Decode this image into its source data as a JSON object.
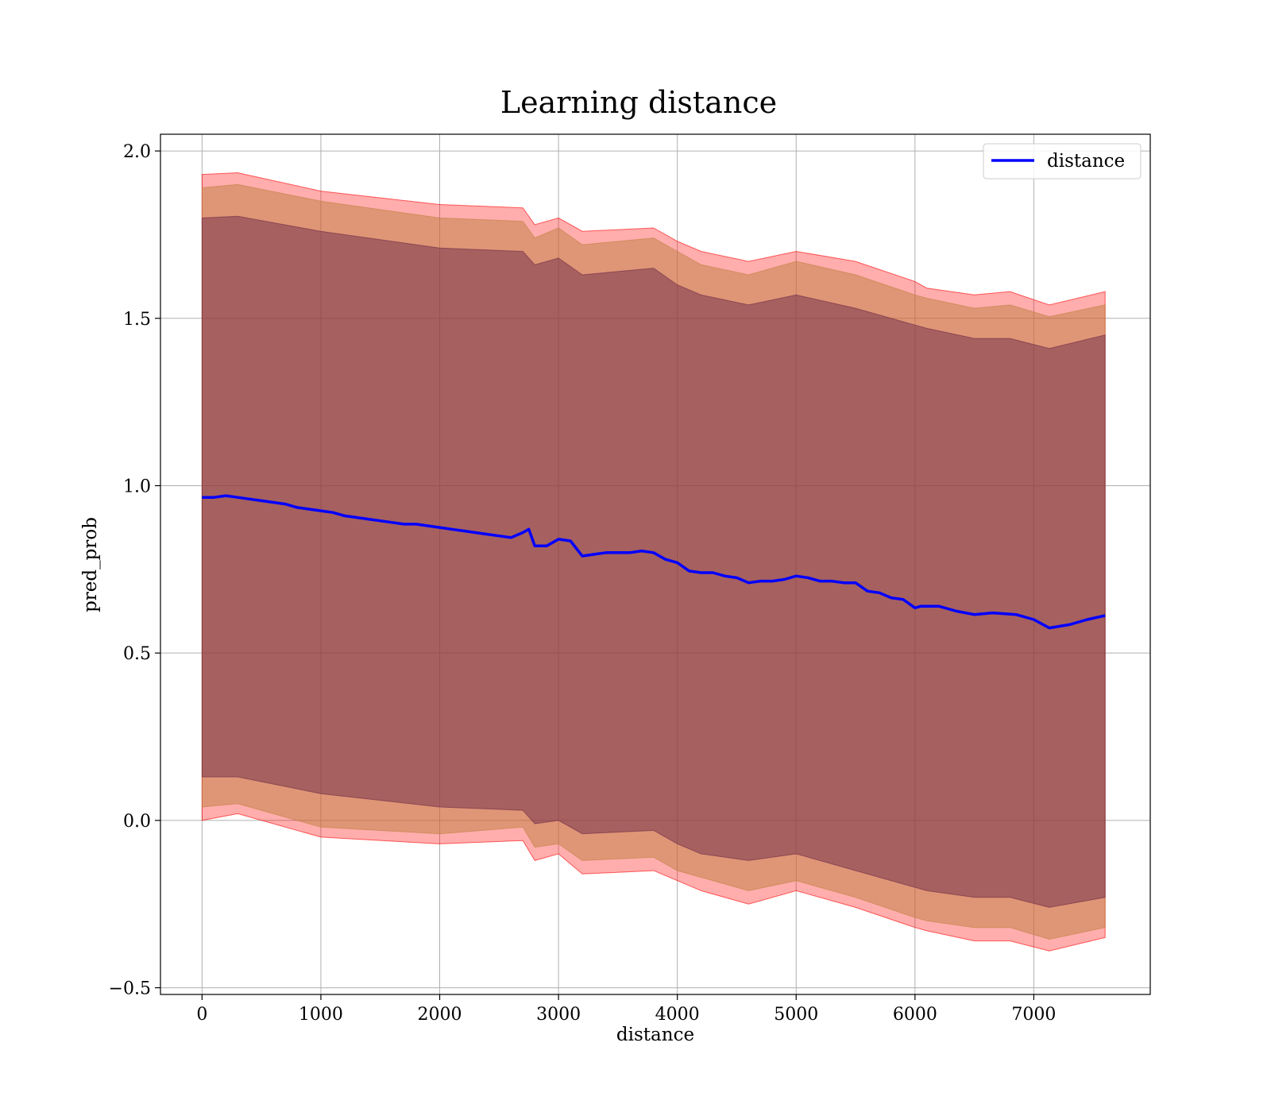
{
  "chart_data": {
    "type": "line",
    "title": "Learning distance",
    "xlabel": "distance",
    "ylabel": "pred_prob",
    "xlim": [
      -350,
      7980
    ],
    "ylim": [
      -0.52,
      2.05
    ],
    "xticks": [
      0,
      1000,
      2000,
      3000,
      4000,
      5000,
      6000,
      7000
    ],
    "yticks": [
      -0.5,
      0.0,
      0.5,
      1.0,
      1.5,
      2.0
    ],
    "xtick_labels": [
      "0",
      "1000",
      "2000",
      "3000",
      "4000",
      "5000",
      "6000",
      "7000"
    ],
    "ytick_labels": [
      "−0.5",
      "0.0",
      "0.5",
      "1.0",
      "1.5",
      "2.0"
    ],
    "grid": true,
    "legend": {
      "position": "top-right",
      "entries": [
        "distance"
      ]
    },
    "series": [
      {
        "name": "distance",
        "color": "#0000ff",
        "x": [
          0,
          100,
          200,
          300,
          400,
          500,
          600,
          700,
          800,
          900,
          1000,
          1100,
          1200,
          1300,
          1400,
          1500,
          1600,
          1700,
          1800,
          1900,
          2000,
          2100,
          2200,
          2300,
          2400,
          2500,
          2600,
          2700,
          2750,
          2800,
          2900,
          3000,
          3100,
          3200,
          3300,
          3400,
          3500,
          3600,
          3700,
          3800,
          3900,
          4000,
          4100,
          4200,
          4300,
          4400,
          4500,
          4600,
          4700,
          4800,
          4900,
          5000,
          5100,
          5200,
          5300,
          5400,
          5500,
          5600,
          5700,
          5800,
          5900,
          6000,
          6050,
          6200,
          6350,
          6500,
          6650,
          6850,
          7000,
          7130,
          7300,
          7450,
          7600
        ],
        "y": [
          0.965,
          0.965,
          0.97,
          0.965,
          0.96,
          0.955,
          0.95,
          0.945,
          0.935,
          0.93,
          0.925,
          0.92,
          0.91,
          0.905,
          0.9,
          0.895,
          0.89,
          0.885,
          0.885,
          0.88,
          0.875,
          0.87,
          0.865,
          0.86,
          0.855,
          0.85,
          0.845,
          0.86,
          0.87,
          0.82,
          0.82,
          0.84,
          0.835,
          0.79,
          0.795,
          0.8,
          0.8,
          0.8,
          0.805,
          0.8,
          0.78,
          0.77,
          0.745,
          0.74,
          0.74,
          0.73,
          0.725,
          0.71,
          0.715,
          0.715,
          0.72,
          0.73,
          0.725,
          0.715,
          0.715,
          0.71,
          0.71,
          0.685,
          0.68,
          0.665,
          0.66,
          0.635,
          0.64,
          0.64,
          0.625,
          0.615,
          0.62,
          0.615,
          0.6,
          0.575,
          0.585,
          0.6,
          0.612
        ]
      }
    ],
    "bands": [
      {
        "color": "#ff0000",
        "opacity": 0.32,
        "x": [
          0,
          300,
          1000,
          2000,
          2700,
          2800,
          3000,
          3200,
          3800,
          4000,
          4200,
          4600,
          5000,
          5500,
          6000,
          6100,
          6500,
          6800,
          7130,
          7600
        ],
        "upper": [
          1.93,
          1.935,
          1.88,
          1.84,
          1.83,
          1.78,
          1.8,
          1.76,
          1.77,
          1.73,
          1.7,
          1.67,
          1.7,
          1.67,
          1.61,
          1.59,
          1.57,
          1.58,
          1.54,
          1.58
        ],
        "lower": [
          0.0,
          0.02,
          -0.05,
          -0.07,
          -0.06,
          -0.12,
          -0.1,
          -0.16,
          -0.15,
          -0.18,
          -0.21,
          -0.25,
          -0.21,
          -0.26,
          -0.32,
          -0.33,
          -0.36,
          -0.36,
          -0.39,
          -0.35
        ]
      },
      {
        "color": "#c08040",
        "opacity": 0.5,
        "x": [
          0,
          300,
          1000,
          2000,
          2700,
          2800,
          3000,
          3200,
          3800,
          4000,
          4200,
          4600,
          5000,
          5500,
          6000,
          6100,
          6500,
          6800,
          7130,
          7600
        ],
        "upper": [
          1.89,
          1.9,
          1.85,
          1.8,
          1.79,
          1.74,
          1.77,
          1.72,
          1.74,
          1.7,
          1.66,
          1.63,
          1.67,
          1.63,
          1.57,
          1.56,
          1.53,
          1.54,
          1.505,
          1.54
        ],
        "lower": [
          0.04,
          0.05,
          -0.02,
          -0.04,
          -0.02,
          -0.08,
          -0.07,
          -0.12,
          -0.11,
          -0.15,
          -0.17,
          -0.21,
          -0.18,
          -0.23,
          -0.29,
          -0.3,
          -0.32,
          -0.32,
          -0.355,
          -0.32
        ]
      },
      {
        "color": "#6e2a48",
        "opacity": 0.5,
        "x": [
          0,
          300,
          1000,
          2000,
          2700,
          2800,
          3000,
          3200,
          3800,
          4000,
          4200,
          4600,
          5000,
          5500,
          6000,
          6100,
          6500,
          6800,
          7130,
          7600
        ],
        "upper": [
          1.8,
          1.805,
          1.76,
          1.71,
          1.7,
          1.66,
          1.68,
          1.63,
          1.65,
          1.6,
          1.57,
          1.54,
          1.57,
          1.53,
          1.48,
          1.47,
          1.44,
          1.44,
          1.41,
          1.45
        ],
        "lower": [
          0.13,
          0.13,
          0.08,
          0.04,
          0.03,
          -0.01,
          0.0,
          -0.04,
          -0.03,
          -0.07,
          -0.1,
          -0.12,
          -0.1,
          -0.15,
          -0.2,
          -0.21,
          -0.23,
          -0.23,
          -0.26,
          -0.23
        ]
      }
    ]
  }
}
